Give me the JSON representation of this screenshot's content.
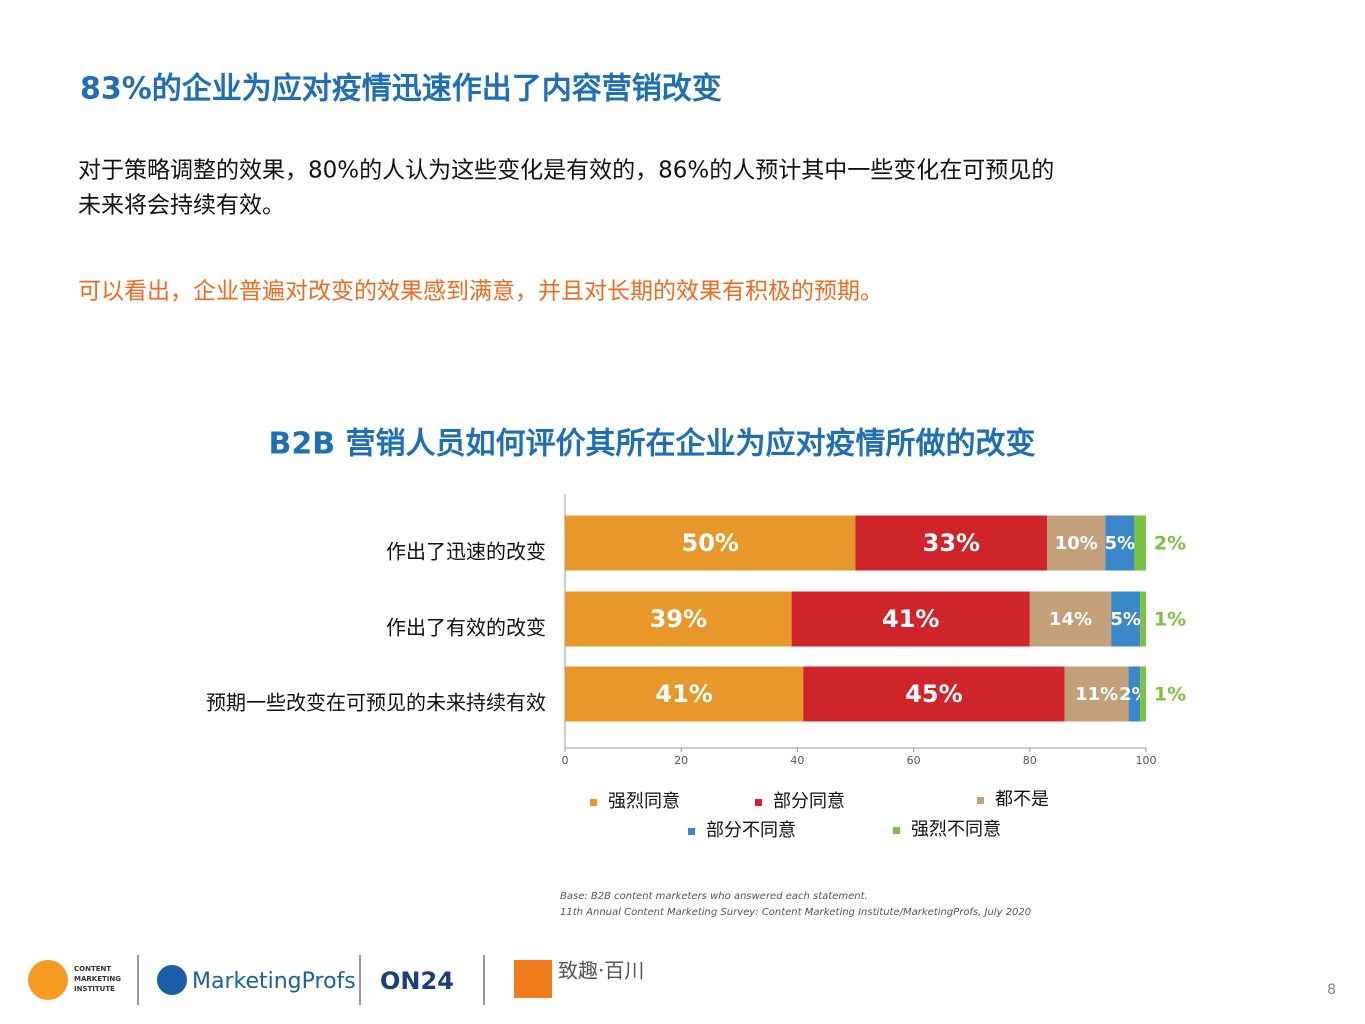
{
  "header": {
    "title": "83%的企业为应对疫情迅速作出了内容营销改变",
    "body_lines": [
      "对于策略调整的效果，80%的人认为这些变化是有效的，86%的人预计其中一些变化在可预见的",
      "未来将会持续有效。"
    ],
    "highlight": "可以看出，企业普遍对改变的效果感到满意，并且对长期的效果有积极的预期。"
  },
  "chart_data": {
    "type": "bar",
    "orientation": "horizontal",
    "stacked": true,
    "title": "B2B 营销人员如何评价其所在企业为应对疫情所做的改变",
    "categories": [
      "作出了迅速的改变",
      "作出了有效的改变",
      "预期一些改变在可预见的未来持续有效"
    ],
    "series": [
      {
        "name": "强烈同意",
        "color": "#e8982a",
        "values": [
          50,
          39,
          41
        ],
        "value_labels": [
          "50%",
          "39%",
          "41%"
        ]
      },
      {
        "name": "部分同意",
        "color": "#d0242b",
        "values": [
          33,
          41,
          45
        ],
        "value_labels": [
          "33%",
          "41%",
          "45%"
        ]
      },
      {
        "name": "都不是",
        "color": "#c4a07a",
        "values": [
          10,
          14,
          11
        ],
        "value_labels": [
          "10%",
          "14%",
          "11%"
        ]
      },
      {
        "name": "部分不同意",
        "color": "#3a87c9",
        "values": [
          5,
          5,
          2
        ],
        "value_labels": [
          "5%",
          "5%",
          "2%"
        ]
      },
      {
        "name": "强烈不同意",
        "color": "#7cc242",
        "values": [
          2,
          1,
          1
        ],
        "value_labels": [
          "2%",
          "1%",
          "1%"
        ]
      }
    ],
    "xlim": [
      0,
      100
    ],
    "xticks": [
      0,
      20,
      40,
      60,
      80,
      100
    ],
    "notes": [
      "Base: B2B content marketers who answered each statement.",
      "11th Annual Content Marketing Survey: Content Marketing Institute/MarketingProfs, July 2020"
    ]
  },
  "footer": {
    "logos": [
      "CONTENT",
      "MARKETING",
      "INSTITUTE",
      "MarketingProfs",
      "ON24",
      "致趣·百川"
    ],
    "page": "8"
  }
}
